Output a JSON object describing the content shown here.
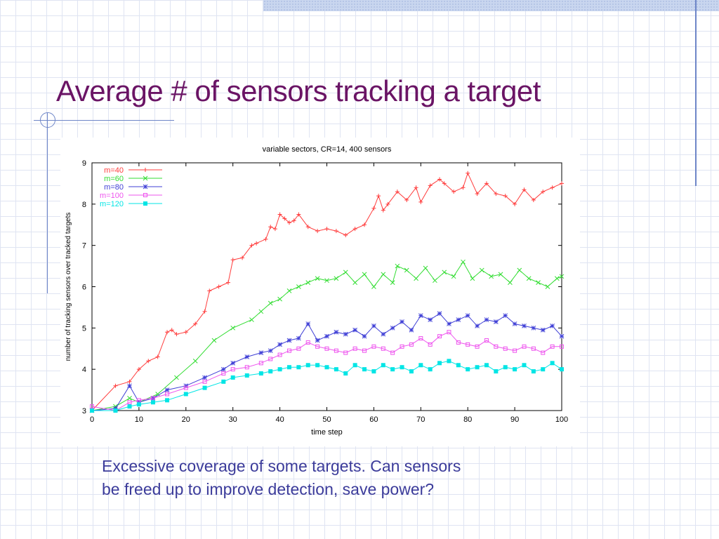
{
  "slide": {
    "title": "Average # of sensors tracking a target",
    "caption_line1": "Excessive coverage of some targets.  Can sensors",
    "caption_line2": "be freed up to improve detection, save power?"
  },
  "chart_data": {
    "type": "line",
    "title": "variable sectors, CR=14, 400 sensors",
    "xlabel": "time step",
    "ylabel": "number of tracking sensors over tracked targets",
    "xlim": [
      0,
      100
    ],
    "ylim": [
      3,
      9
    ],
    "xticks": [
      0,
      10,
      20,
      30,
      40,
      50,
      60,
      70,
      80,
      90,
      100
    ],
    "yticks": [
      3,
      4,
      5,
      6,
      7,
      8,
      9
    ],
    "legend_position": "top-left",
    "series": [
      {
        "name": "m=40",
        "color": "#ff3c3c",
        "marker": "plus",
        "x": [
          0,
          5,
          8,
          10,
          12,
          14,
          16,
          17,
          18,
          20,
          22,
          24,
          25,
          27,
          29,
          30,
          32,
          34,
          35,
          37,
          38,
          39,
          40,
          41,
          42,
          43,
          44,
          46,
          48,
          50,
          52,
          54,
          56,
          58,
          60,
          61,
          62,
          63,
          65,
          67,
          69,
          70,
          72,
          74,
          75,
          77,
          79,
          80,
          82,
          84,
          86,
          88,
          90,
          92,
          94,
          96,
          98,
          100
        ],
        "y": [
          3,
          3.6,
          3.7,
          4.0,
          4.2,
          4.3,
          4.9,
          4.95,
          4.85,
          4.9,
          5.1,
          5.4,
          5.9,
          6.0,
          6.1,
          6.65,
          6.7,
          7.0,
          7.05,
          7.15,
          7.45,
          7.4,
          7.75,
          7.65,
          7.55,
          7.6,
          7.75,
          7.45,
          7.35,
          7.4,
          7.35,
          7.25,
          7.4,
          7.5,
          7.9,
          8.2,
          7.85,
          8.0,
          8.3,
          8.1,
          8.4,
          8.05,
          8.45,
          8.6,
          8.5,
          8.3,
          8.4,
          8.75,
          8.25,
          8.5,
          8.25,
          8.2,
          8.0,
          8.35,
          8.1,
          8.3,
          8.4,
          8.5
        ]
      },
      {
        "name": "m=60",
        "color": "#33dd33",
        "marker": "x",
        "x": [
          0,
          5,
          8,
          10,
          14,
          18,
          22,
          26,
          30,
          34,
          36,
          38,
          40,
          42,
          44,
          46,
          48,
          50,
          52,
          54,
          56,
          58,
          60,
          62,
          64,
          65,
          67,
          69,
          71,
          73,
          75,
          77,
          79,
          81,
          83,
          85,
          87,
          89,
          91,
          93,
          95,
          97,
          99,
          100
        ],
        "y": [
          3,
          3.1,
          3.3,
          3.2,
          3.4,
          3.8,
          4.2,
          4.7,
          5.0,
          5.2,
          5.4,
          5.6,
          5.7,
          5.9,
          6.0,
          6.1,
          6.2,
          6.15,
          6.2,
          6.35,
          6.1,
          6.3,
          6.0,
          6.3,
          6.1,
          6.5,
          6.4,
          6.2,
          6.45,
          6.15,
          6.35,
          6.25,
          6.6,
          6.2,
          6.4,
          6.25,
          6.3,
          6.1,
          6.4,
          6.2,
          6.1,
          6.0,
          6.2,
          6.25
        ]
      },
      {
        "name": "m=80",
        "color": "#3f3fd6",
        "marker": "star",
        "x": [
          0,
          5,
          8,
          10,
          13,
          16,
          20,
          24,
          28,
          30,
          33,
          36,
          38,
          40,
          42,
          44,
          46,
          48,
          50,
          52,
          54,
          56,
          58,
          60,
          62,
          64,
          66,
          68,
          70,
          72,
          74,
          76,
          78,
          80,
          82,
          84,
          86,
          88,
          90,
          92,
          94,
          96,
          98,
          100
        ],
        "y": [
          3,
          3.05,
          3.6,
          3.2,
          3.3,
          3.5,
          3.6,
          3.8,
          4.0,
          4.15,
          4.3,
          4.4,
          4.45,
          4.6,
          4.7,
          4.75,
          5.1,
          4.7,
          4.8,
          4.9,
          4.85,
          4.95,
          4.8,
          5.05,
          4.85,
          5.0,
          5.15,
          4.95,
          5.3,
          5.2,
          5.35,
          5.1,
          5.2,
          5.3,
          5.05,
          5.2,
          5.15,
          5.3,
          5.1,
          5.05,
          5.0,
          4.95,
          5.05,
          4.8
        ]
      },
      {
        "name": "m=100",
        "color": "#ee55ee",
        "marker": "square-open",
        "x": [
          0,
          5,
          8,
          10,
          13,
          16,
          20,
          24,
          28,
          30,
          33,
          36,
          38,
          40,
          42,
          44,
          46,
          48,
          50,
          52,
          54,
          56,
          58,
          60,
          62,
          64,
          66,
          68,
          70,
          72,
          74,
          76,
          78,
          80,
          82,
          84,
          86,
          88,
          90,
          92,
          94,
          96,
          98,
          100
        ],
        "y": [
          3.1,
          3.0,
          3.2,
          3.25,
          3.3,
          3.4,
          3.55,
          3.7,
          3.9,
          4.0,
          4.05,
          4.15,
          4.25,
          4.35,
          4.45,
          4.5,
          4.65,
          4.55,
          4.5,
          4.45,
          4.4,
          4.5,
          4.45,
          4.55,
          4.5,
          4.4,
          4.55,
          4.6,
          4.75,
          4.6,
          4.8,
          4.9,
          4.65,
          4.6,
          4.55,
          4.7,
          4.55,
          4.5,
          4.45,
          4.55,
          4.5,
          4.4,
          4.55,
          4.55
        ]
      },
      {
        "name": "m=120",
        "color": "#00e5e5",
        "marker": "square-filled",
        "x": [
          0,
          5,
          8,
          10,
          13,
          16,
          20,
          24,
          28,
          30,
          33,
          36,
          38,
          40,
          42,
          44,
          46,
          48,
          50,
          52,
          54,
          56,
          58,
          60,
          62,
          64,
          66,
          68,
          70,
          72,
          74,
          76,
          78,
          80,
          82,
          84,
          86,
          88,
          90,
          92,
          94,
          96,
          98,
          100
        ],
        "y": [
          3.0,
          3.0,
          3.1,
          3.15,
          3.2,
          3.25,
          3.4,
          3.55,
          3.7,
          3.8,
          3.85,
          3.9,
          3.95,
          4.0,
          4.05,
          4.05,
          4.1,
          4.1,
          4.05,
          4.0,
          3.9,
          4.1,
          4.0,
          3.95,
          4.1,
          4.0,
          4.05,
          3.95,
          4.1,
          4.0,
          4.15,
          4.2,
          4.1,
          4.0,
          4.05,
          4.1,
          3.95,
          4.05,
          4.0,
          4.1,
          3.95,
          4.0,
          4.15,
          4.0
        ]
      }
    ]
  }
}
